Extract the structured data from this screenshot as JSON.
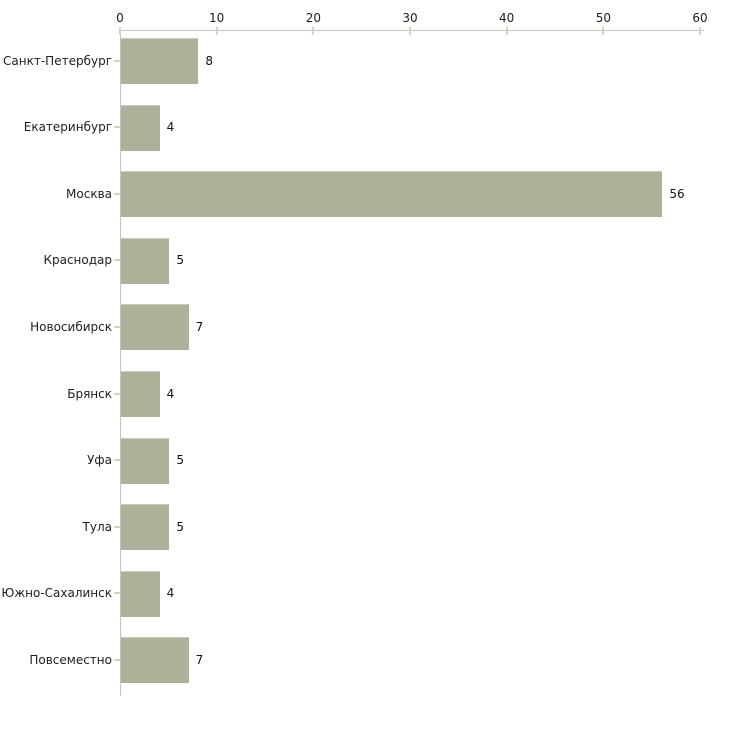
{
  "chart_data": {
    "type": "bar",
    "orientation": "horizontal",
    "title": "",
    "xlabel": "",
    "ylabel": "",
    "categories": [
      "Санкт-Петербург",
      "Екатеринбург",
      "Москва",
      "Краснодар",
      "Новосибирск",
      "Брянск",
      "Уфа",
      "Тула",
      "Южно-Сахалинск",
      "Повсеместно"
    ],
    "values": [
      8,
      4,
      56,
      5,
      7,
      4,
      5,
      5,
      4,
      7
    ],
    "value_labels": [
      "8",
      "4",
      "56",
      "5",
      "7",
      "4",
      "5",
      "5",
      "4",
      "7"
    ],
    "xlim": [
      0,
      60
    ],
    "x_ticks": [
      0,
      10,
      20,
      30,
      40,
      50,
      60
    ],
    "x_tick_labels": [
      "0",
      "10",
      "20",
      "30",
      "40",
      "50",
      "60"
    ],
    "axis_position": "top",
    "grid": false,
    "legend": false,
    "colors": {
      "bar_fill": "#acb29a",
      "axis_line": "#c6c6c6",
      "tick_mark": "#d3d6b9",
      "text": "#1e1e1e",
      "background": "#ffffff"
    }
  }
}
